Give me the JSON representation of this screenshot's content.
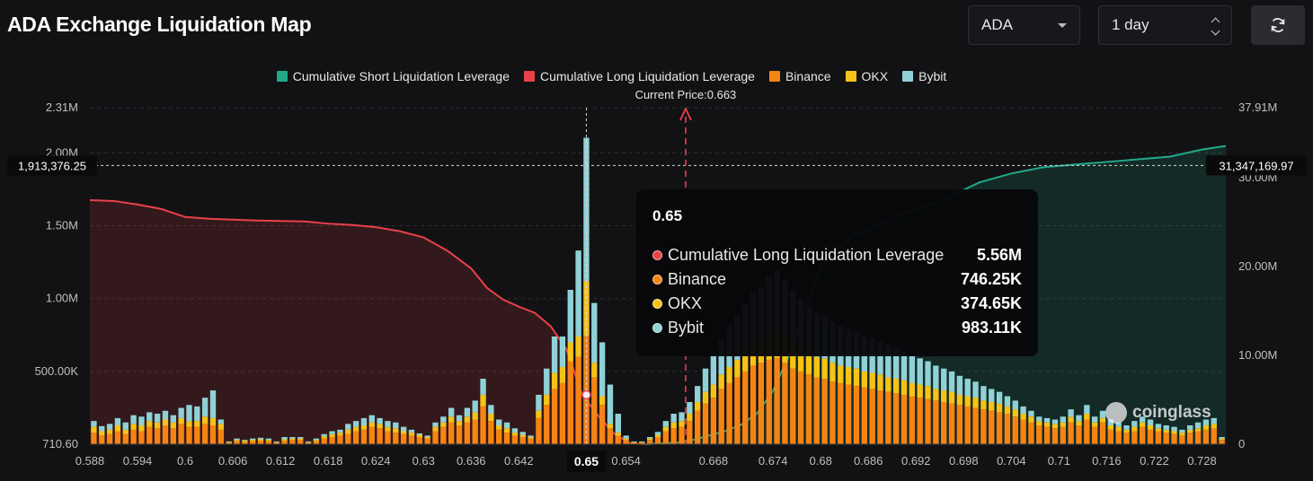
{
  "header": {
    "title": "ADA Exchange Liquidation Map",
    "coin_select": "ADA",
    "range_select": "1 day",
    "refresh_icon": "refresh-icon"
  },
  "legend": [
    {
      "label": "Cumulative Short Liquidation Leverage",
      "color": "#22a98c"
    },
    {
      "label": "Cumulative Long Liquidation Leverage",
      "color": "#e8414a"
    },
    {
      "label": "Binance",
      "color": "#f58414"
    },
    {
      "label": "OKX",
      "color": "#f5c317"
    },
    {
      "label": "Bybit",
      "color": "#8fd1d6"
    }
  ],
  "current_price_label": "Current Price:0.663",
  "crosshair": {
    "left_value": "1,913,376.25",
    "right_value": "31,347,169.97",
    "x_value": "0.65"
  },
  "tooltip": {
    "title": "0.65",
    "rows": [
      {
        "label": "Cumulative Long Liquidation Leverage",
        "value": "5.56M",
        "color": "#e8414a"
      },
      {
        "label": "Binance",
        "value": "746.25K",
        "color": "#f58414"
      },
      {
        "label": "OKX",
        "value": "374.65K",
        "color": "#f5c317"
      },
      {
        "label": "Bybit",
        "value": "983.11K",
        "color": "#8fd1d6"
      }
    ]
  },
  "watermark": "coinglass",
  "chart_data": {
    "type": "bar",
    "title": "ADA Exchange Liquidation Map",
    "x_ticks": [
      "0.588",
      "0.594",
      "0.6",
      "0.606",
      "0.612",
      "0.618",
      "0.624",
      "0.63",
      "0.636",
      "0.642",
      "0.65",
      "0.654",
      "0.668",
      "0.674",
      "0.68",
      "0.686",
      "0.692",
      "0.698",
      "0.704",
      "0.71",
      "0.716",
      "0.722",
      "0.728"
    ],
    "y_left_ticks": [
      "710.60",
      "500.00K",
      "1.00M",
      "1.50M",
      "2.00M",
      "2.31M"
    ],
    "y_right_ticks": [
      "0",
      "10.00M",
      "20.00M",
      "30.00M",
      "37.91M"
    ],
    "y_left_range": [
      710.6,
      2310000
    ],
    "y_right_range": [
      0,
      37910000
    ],
    "x_range": [
      0.588,
      0.731
    ],
    "current_price": 0.663,
    "grid": true,
    "legend_position": "top-center",
    "colors": {
      "binance": "#f58414",
      "okx": "#f5c317",
      "bybit": "#8fd1d6",
      "long": "#e8414a",
      "short": "#22a98c"
    },
    "bars": [
      [
        0.5885,
        80000,
        40000,
        40000
      ],
      [
        0.5895,
        60000,
        30000,
        35000
      ],
      [
        0.5905,
        70000,
        30000,
        40000
      ],
      [
        0.5915,
        90000,
        40000,
        50000
      ],
      [
        0.5925,
        70000,
        30000,
        50000
      ],
      [
        0.5935,
        100000,
        40000,
        60000
      ],
      [
        0.5945,
        90000,
        40000,
        60000
      ],
      [
        0.5955,
        120000,
        40000,
        60000
      ],
      [
        0.5965,
        110000,
        40000,
        60000
      ],
      [
        0.5975,
        130000,
        40000,
        60000
      ],
      [
        0.5985,
        110000,
        40000,
        50000
      ],
      [
        0.5995,
        140000,
        40000,
        70000
      ],
      [
        0.6005,
        120000,
        40000,
        110000
      ],
      [
        0.6015,
        120000,
        40000,
        100000
      ],
      [
        0.6025,
        140000,
        50000,
        130000
      ],
      [
        0.6035,
        130000,
        50000,
        190000
      ],
      [
        0.6045,
        100000,
        40000,
        30000
      ],
      [
        0.6055,
        10000,
        5000,
        5000
      ],
      [
        0.6065,
        20000,
        10000,
        10000
      ],
      [
        0.6075,
        15000,
        10000,
        5000
      ],
      [
        0.6085,
        20000,
        10000,
        10000
      ],
      [
        0.6095,
        25000,
        10000,
        10000
      ],
      [
        0.6105,
        20000,
        10000,
        10000
      ],
      [
        0.6115,
        10000,
        5000,
        5000
      ],
      [
        0.6125,
        25000,
        10000,
        15000
      ],
      [
        0.6135,
        30000,
        10000,
        10000
      ],
      [
        0.6145,
        30000,
        10000,
        10000
      ],
      [
        0.6155,
        10000,
        5000,
        5000
      ],
      [
        0.6165,
        20000,
        10000,
        10000
      ],
      [
        0.6175,
        40000,
        15000,
        15000
      ],
      [
        0.6185,
        50000,
        20000,
        20000
      ],
      [
        0.6195,
        60000,
        20000,
        20000
      ],
      [
        0.6205,
        70000,
        30000,
        40000
      ],
      [
        0.6215,
        90000,
        30000,
        40000
      ],
      [
        0.6225,
        100000,
        30000,
        50000
      ],
      [
        0.6235,
        120000,
        30000,
        50000
      ],
      [
        0.6245,
        110000,
        30000,
        40000
      ],
      [
        0.6255,
        90000,
        30000,
        40000
      ],
      [
        0.6265,
        80000,
        30000,
        40000
      ],
      [
        0.6275,
        70000,
        20000,
        30000
      ],
      [
        0.6285,
        60000,
        20000,
        20000
      ],
      [
        0.6295,
        50000,
        15000,
        10000
      ],
      [
        0.6305,
        40000,
        10000,
        10000
      ],
      [
        0.6315,
        90000,
        30000,
        30000
      ],
      [
        0.6325,
        120000,
        30000,
        40000
      ],
      [
        0.6335,
        150000,
        40000,
        60000
      ],
      [
        0.6345,
        130000,
        30000,
        40000
      ],
      [
        0.6355,
        150000,
        40000,
        60000
      ],
      [
        0.6365,
        170000,
        50000,
        80000
      ],
      [
        0.6375,
        260000,
        80000,
        110000
      ],
      [
        0.6385,
        160000,
        50000,
        60000
      ],
      [
        0.6395,
        100000,
        30000,
        40000
      ],
      [
        0.6405,
        80000,
        30000,
        40000
      ],
      [
        0.6415,
        60000,
        20000,
        30000
      ],
      [
        0.6425,
        50000,
        15000,
        20000
      ],
      [
        0.6435,
        40000,
        10000,
        10000
      ],
      [
        0.6445,
        180000,
        50000,
        110000
      ],
      [
        0.6455,
        270000,
        70000,
        180000
      ],
      [
        0.6465,
        380000,
        110000,
        250000
      ],
      [
        0.6475,
        420000,
        110000,
        210000
      ],
      [
        0.6485,
        570000,
        130000,
        360000
      ],
      [
        0.6495,
        600000,
        140000,
        590000
      ],
      [
        0.6505,
        746250,
        374650,
        983110
      ],
      [
        0.6515,
        460000,
        100000,
        410000
      ],
      [
        0.6525,
        270000,
        60000,
        370000
      ],
      [
        0.6535,
        110000,
        30000,
        270000
      ],
      [
        0.6545,
        60000,
        20000,
        130000
      ],
      [
        0.6555,
        30000,
        10000,
        20000
      ],
      [
        0.6565,
        10000,
        5000,
        5000
      ],
      [
        0.6575,
        10000,
        5000,
        5000
      ],
      [
        0.6585,
        30000,
        10000,
        10000
      ],
      [
        0.6595,
        50000,
        15000,
        20000
      ],
      [
        0.6605,
        90000,
        30000,
        40000
      ],
      [
        0.6615,
        110000,
        40000,
        60000
      ],
      [
        0.6625,
        120000,
        40000,
        60000
      ],
      [
        0.6635,
        160000,
        50000,
        80000
      ],
      [
        0.6645,
        230000,
        60000,
        110000
      ],
      [
        0.6655,
        280000,
        80000,
        160000
      ],
      [
        0.6665,
        320000,
        90000,
        200000
      ],
      [
        0.6675,
        380000,
        100000,
        240000
      ],
      [
        0.6685,
        420000,
        110000,
        280000
      ],
      [
        0.6695,
        460000,
        120000,
        300000
      ],
      [
        0.6705,
        500000,
        140000,
        320000
      ],
      [
        0.6715,
        540000,
        160000,
        340000
      ],
      [
        0.6725,
        560000,
        170000,
        350000
      ],
      [
        0.6735,
        580000,
        190000,
        380000
      ],
      [
        0.6745,
        590000,
        200000,
        400000
      ],
      [
        0.6755,
        560000,
        190000,
        380000
      ],
      [
        0.6765,
        520000,
        170000,
        360000
      ],
      [
        0.6775,
        500000,
        160000,
        340000
      ],
      [
        0.6785,
        480000,
        150000,
        320000
      ],
      [
        0.6795,
        460000,
        140000,
        300000
      ],
      [
        0.6805,
        450000,
        140000,
        290000
      ],
      [
        0.6815,
        430000,
        130000,
        280000
      ],
      [
        0.6825,
        420000,
        120000,
        270000
      ],
      [
        0.6835,
        410000,
        120000,
        260000
      ],
      [
        0.6845,
        400000,
        120000,
        250000
      ],
      [
        0.6855,
        390000,
        110000,
        240000
      ],
      [
        0.6865,
        380000,
        110000,
        240000
      ],
      [
        0.6875,
        370000,
        110000,
        230000
      ],
      [
        0.6885,
        360000,
        100000,
        220000
      ],
      [
        0.6895,
        350000,
        100000,
        210000
      ],
      [
        0.6905,
        340000,
        100000,
        200000
      ],
      [
        0.6915,
        330000,
        90000,
        190000
      ],
      [
        0.6925,
        320000,
        90000,
        180000
      ],
      [
        0.6935,
        310000,
        90000,
        170000
      ],
      [
        0.6945,
        300000,
        80000,
        160000
      ],
      [
        0.6955,
        290000,
        80000,
        150000
      ],
      [
        0.6965,
        280000,
        80000,
        140000
      ],
      [
        0.6975,
        270000,
        70000,
        130000
      ],
      [
        0.6985,
        260000,
        70000,
        120000
      ],
      [
        0.6995,
        250000,
        70000,
        110000
      ],
      [
        0.7005,
        240000,
        60000,
        100000
      ],
      [
        0.7015,
        230000,
        60000,
        90000
      ],
      [
        0.7025,
        220000,
        60000,
        80000
      ],
      [
        0.7035,
        210000,
        50000,
        70000
      ],
      [
        0.7045,
        190000,
        50000,
        60000
      ],
      [
        0.7055,
        170000,
        40000,
        50000
      ],
      [
        0.7065,
        150000,
        40000,
        40000
      ],
      [
        0.7075,
        130000,
        30000,
        30000
      ],
      [
        0.7085,
        120000,
        30000,
        30000
      ],
      [
        0.7095,
        110000,
        30000,
        30000
      ],
      [
        0.7105,
        120000,
        30000,
        40000
      ],
      [
        0.7115,
        150000,
        40000,
        50000
      ],
      [
        0.7125,
        130000,
        30000,
        40000
      ],
      [
        0.7135,
        170000,
        40000,
        60000
      ],
      [
        0.7145,
        120000,
        30000,
        40000
      ],
      [
        0.7155,
        150000,
        30000,
        50000
      ],
      [
        0.7165,
        100000,
        30000,
        40000
      ],
      [
        0.7175,
        90000,
        30000,
        30000
      ],
      [
        0.7185,
        80000,
        20000,
        30000
      ],
      [
        0.7195,
        90000,
        30000,
        40000
      ],
      [
        0.7205,
        120000,
        30000,
        40000
      ],
      [
        0.7215,
        100000,
        30000,
        40000
      ],
      [
        0.7225,
        90000,
        20000,
        30000
      ],
      [
        0.7235,
        80000,
        20000,
        30000
      ],
      [
        0.7245,
        70000,
        20000,
        30000
      ],
      [
        0.7255,
        60000,
        20000,
        20000
      ],
      [
        0.7265,
        80000,
        20000,
        30000
      ],
      [
        0.7275,
        90000,
        20000,
        40000
      ],
      [
        0.7285,
        100000,
        30000,
        40000
      ],
      [
        0.7295,
        110000,
        30000,
        40000
      ],
      [
        0.7305,
        30000,
        10000,
        10000
      ]
    ],
    "long_line": [
      [
        0.588,
        27500000
      ],
      [
        0.591,
        27400000
      ],
      [
        0.594,
        27000000
      ],
      [
        0.597,
        26500000
      ],
      [
        0.6,
        25600000
      ],
      [
        0.603,
        25400000
      ],
      [
        0.606,
        25300000
      ],
      [
        0.609,
        25200000
      ],
      [
        0.612,
        25150000
      ],
      [
        0.615,
        25100000
      ],
      [
        0.618,
        24850000
      ],
      [
        0.621,
        24700000
      ],
      [
        0.624,
        24450000
      ],
      [
        0.627,
        24000000
      ],
      [
        0.63,
        23300000
      ],
      [
        0.633,
        21800000
      ],
      [
        0.636,
        19800000
      ],
      [
        0.638,
        17600000
      ],
      [
        0.64,
        16300000
      ],
      [
        0.642,
        15500000
      ],
      [
        0.644,
        14800000
      ],
      [
        0.646,
        13300000
      ],
      [
        0.648,
        10700000
      ],
      [
        0.65,
        5560000
      ],
      [
        0.652,
        3200000
      ],
      [
        0.654,
        1200000
      ],
      [
        0.656,
        100000
      ],
      [
        0.658,
        0
      ]
    ],
    "short_line": [
      [
        0.658,
        0
      ],
      [
        0.662,
        200000
      ],
      [
        0.664,
        500000
      ],
      [
        0.666,
        1000000
      ],
      [
        0.668,
        1500000
      ],
      [
        0.67,
        2200000
      ],
      [
        0.672,
        3500000
      ],
      [
        0.674,
        6000000
      ],
      [
        0.676,
        10000000
      ],
      [
        0.678,
        15000000
      ],
      [
        0.68,
        20000000
      ],
      [
        0.684,
        23500000
      ],
      [
        0.688,
        25000000
      ],
      [
        0.692,
        26500000
      ],
      [
        0.696,
        27800000
      ],
      [
        0.7,
        29500000
      ],
      [
        0.704,
        30500000
      ],
      [
        0.708,
        31200000
      ],
      [
        0.712,
        31500000
      ],
      [
        0.716,
        31800000
      ],
      [
        0.72,
        32100000
      ],
      [
        0.724,
        32400000
      ],
      [
        0.728,
        33200000
      ],
      [
        0.731,
        33600000
      ]
    ]
  }
}
